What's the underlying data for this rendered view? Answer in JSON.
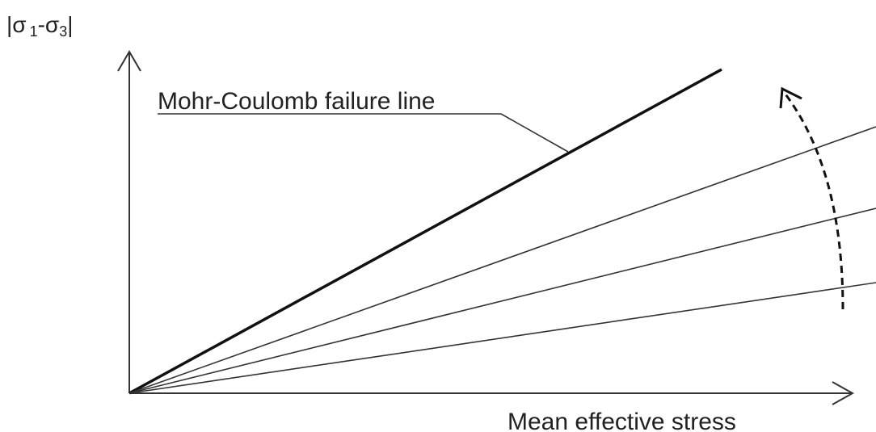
{
  "y_axis_label": [
    "|σ",
    "1",
    "-σ",
    "3",
    "|"
  ],
  "failure_line_label": "Mohr-Coulomb failure line",
  "x_axis_label": "Mean effective stress"
}
